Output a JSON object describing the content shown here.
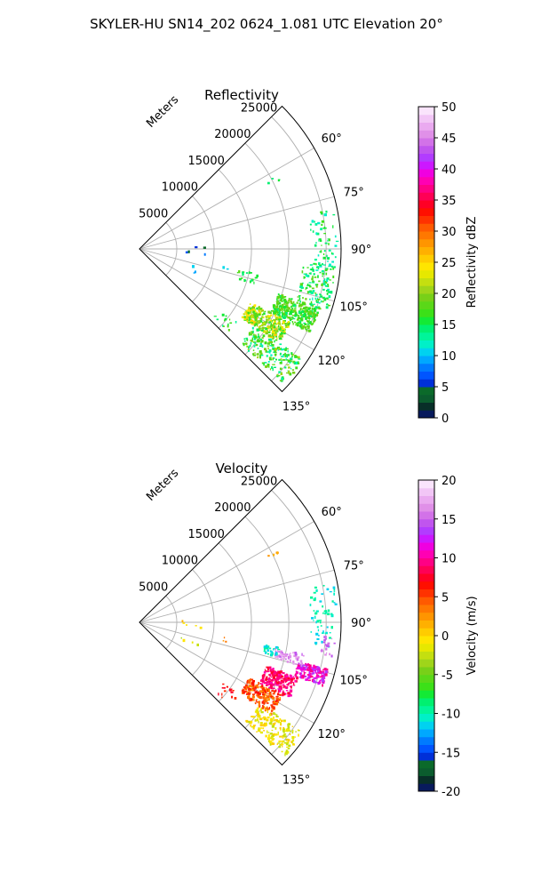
{
  "figure": {
    "suptitle": "SKYLER-HU  SN14_202  0624_1.081 UTC Elevation 20°"
  },
  "chart_data": [
    {
      "type": "scatter",
      "subtype": "polar-sector-radar-ppi",
      "title": "Reflectivity",
      "radial_label": "Meters",
      "radial_ticks": [
        "5000",
        "10000",
        "15000",
        "20000",
        "25000"
      ],
      "radial_tick_values": [
        5000,
        10000,
        15000,
        20000,
        25000
      ],
      "r_max": 27000,
      "theta_range_deg": [
        45,
        135
      ],
      "theta_ticks": [
        "60°",
        "75°",
        "90°",
        "105°",
        "120°",
        "135°"
      ],
      "theta_tick_values": [
        60,
        75,
        90,
        105,
        120,
        135
      ],
      "grid": true,
      "colorbar": {
        "label": "Reflectivity dBZ",
        "min": 0,
        "max": 50,
        "ticks": [
          "0",
          "5",
          "10",
          "15",
          "20",
          "25",
          "30",
          "35",
          "40",
          "45",
          "50"
        ],
        "tick_values": [
          0,
          5,
          10,
          15,
          20,
          25,
          30,
          35,
          40,
          45,
          50
        ],
        "colors": [
          "#081a5c",
          "#082f28",
          "#0b5c2e",
          "#0b6a2a",
          "#0030d8",
          "#0055ff",
          "#007bff",
          "#00a8ff",
          "#00d2f0",
          "#00f0c8",
          "#00f59a",
          "#00f070",
          "#13ea35",
          "#3ce018",
          "#5ad818",
          "#78d018",
          "#9fd51a",
          "#c4df10",
          "#e6e800",
          "#ffe500",
          "#ffcc00",
          "#ffb000",
          "#ff9500",
          "#ff7800",
          "#ff5a00",
          "#ff3200",
          "#ff0f00",
          "#ff0025",
          "#ff0055",
          "#ff0085",
          "#ff00b3",
          "#f000e0",
          "#cc18ff",
          "#b23cff",
          "#c055ee",
          "#d272e8",
          "#e090e8",
          "#eaaaf0",
          "#f2c6f6",
          "#fae4fc"
        ]
      },
      "clusters": [
        {
          "theta_deg": [
            108,
            116
          ],
          "r_m": [
            19500,
            25500
          ],
          "value": [
            14,
            20
          ],
          "count": 320
        },
        {
          "theta_deg": [
            116,
            124
          ],
          "r_m": [
            16500,
            22500
          ],
          "value": [
            15,
            26
          ],
          "count": 300
        },
        {
          "theta_deg": [
            124,
            133
          ],
          "r_m": [
            18500,
            26500
          ],
          "value": [
            12,
            21
          ],
          "count": 200
        },
        {
          "theta_deg": [
            96,
            108
          ],
          "r_m": [
            22000,
            26500
          ],
          "value": [
            12,
            19
          ],
          "count": 120
        },
        {
          "theta_deg": [
            78,
            96
          ],
          "r_m": [
            23000,
            26500
          ],
          "value": [
            12,
            17
          ],
          "count": 70
        },
        {
          "theta_deg": [
            102,
            108
          ],
          "r_m": [
            13500,
            16500
          ],
          "value": [
            14,
            18
          ],
          "count": 18
        },
        {
          "theta_deg": [
            127,
            133
          ],
          "r_m": [
            13500,
            16500
          ],
          "value": [
            13,
            18
          ],
          "count": 14
        },
        {
          "theta_deg": [
            62,
            64
          ],
          "r_m": [
            19000,
            21000
          ],
          "value": [
            14,
            17
          ],
          "count": 4
        },
        {
          "theta_deg": [
            88,
            96
          ],
          "r_m": [
            5500,
            9000
          ],
          "value": [
            4,
            10
          ],
          "count": 5
        },
        {
          "theta_deg": [
            108,
            115
          ],
          "r_m": [
            6000,
            8500
          ],
          "value": [
            6,
            11
          ],
          "count": 4
        },
        {
          "theta_deg": [
            100,
            103
          ],
          "r_m": [
            11500,
            12500
          ],
          "value": [
            10,
            13
          ],
          "count": 3
        }
      ]
    },
    {
      "type": "scatter",
      "subtype": "polar-sector-radar-ppi",
      "title": "Velocity",
      "radial_label": "Meters",
      "radial_ticks": [
        "5000",
        "10000",
        "15000",
        "20000",
        "25000"
      ],
      "radial_tick_values": [
        5000,
        10000,
        15000,
        20000,
        25000
      ],
      "r_max": 27000,
      "theta_range_deg": [
        45,
        135
      ],
      "theta_ticks": [
        "60°",
        "75°",
        "90°",
        "105°",
        "120°",
        "135°"
      ],
      "theta_tick_values": [
        60,
        75,
        90,
        105,
        120,
        135
      ],
      "grid": true,
      "colorbar": {
        "label": "Velocity (m/s)",
        "min": -20,
        "max": 20,
        "ticks": [
          "-20",
          "-15",
          "-10",
          "-5",
          "0",
          "5",
          "10",
          "15",
          "20"
        ],
        "tick_values": [
          -20,
          -15,
          -10,
          -5,
          0,
          5,
          10,
          15,
          20
        ],
        "colors": [
          "#081a5c",
          "#082f28",
          "#0b5c2e",
          "#0b6a2a",
          "#0030d8",
          "#0055ff",
          "#007bff",
          "#00a8ff",
          "#00d2f0",
          "#00f0c8",
          "#00f59a",
          "#00f070",
          "#13ea35",
          "#3ce018",
          "#5ad818",
          "#78d018",
          "#9fd51a",
          "#c4df10",
          "#e6e800",
          "#ffe500",
          "#ffcc00",
          "#ffb000",
          "#ff9500",
          "#ff7800",
          "#ff5a00",
          "#ff3200",
          "#ff0f00",
          "#ff0025",
          "#ff0055",
          "#ff0085",
          "#ff00b3",
          "#f000e0",
          "#cc18ff",
          "#b23cff",
          "#c055ee",
          "#d272e8",
          "#e090e8",
          "#eaaaf0",
          "#f2c6f6",
          "#fae4fc"
        ]
      },
      "clusters": [
        {
          "theta_deg": [
            104,
            109
          ],
          "r_m": [
            22000,
            26000
          ],
          "value": [
            9,
            14
          ],
          "count": 180
        },
        {
          "theta_deg": [
            101,
            105
          ],
          "r_m": [
            18500,
            22500
          ],
          "value": [
            14,
            18
          ],
          "count": 60
        },
        {
          "theta_deg": [
            109,
            117
          ],
          "r_m": [
            18000,
            22500
          ],
          "value": [
            7,
            11
          ],
          "count": 220
        },
        {
          "theta_deg": [
            117,
            125
          ],
          "r_m": [
            16500,
            21500
          ],
          "value": [
            2,
            7
          ],
          "count": 200
        },
        {
          "theta_deg": [
            124,
            133
          ],
          "r_m": [
            19500,
            26500
          ],
          "value": [
            -3,
            1
          ],
          "count": 180
        },
        {
          "theta_deg": [
            100,
            104
          ],
          "r_m": [
            17000,
            19000
          ],
          "value": [
            -12,
            -9
          ],
          "count": 30
        },
        {
          "theta_deg": [
            78,
            98
          ],
          "r_m": [
            23000,
            26500
          ],
          "value": [
            -12,
            -9
          ],
          "count": 60
        },
        {
          "theta_deg": [
            94,
            100
          ],
          "r_m": [
            24500,
            26500
          ],
          "value": [
            14,
            17
          ],
          "count": 20
        },
        {
          "theta_deg": [
            126,
            133
          ],
          "r_m": [
            13500,
            16500
          ],
          "value": [
            5,
            8
          ],
          "count": 14
        },
        {
          "theta_deg": [
            62,
            64
          ],
          "r_m": [
            19000,
            21000
          ],
          "value": [
            1,
            3
          ],
          "count": 4
        },
        {
          "theta_deg": [
            88,
            96
          ],
          "r_m": [
            5500,
            9000
          ],
          "value": [
            -3,
            2
          ],
          "count": 5
        },
        {
          "theta_deg": [
            108,
            115
          ],
          "r_m": [
            6000,
            8500
          ],
          "value": [
            -4,
            0
          ],
          "count": 4
        },
        {
          "theta_deg": [
            100,
            103
          ],
          "r_m": [
            11500,
            12500
          ],
          "value": [
            1,
            4
          ],
          "count": 3
        }
      ]
    }
  ]
}
